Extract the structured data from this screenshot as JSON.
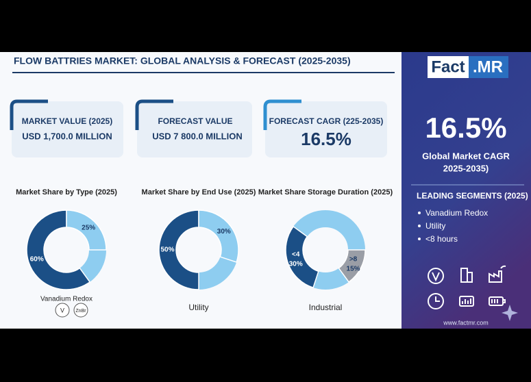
{
  "header": {
    "title": "FLOW BATTRIES MARKET: GLOBAL ANALYSIS & FORECAST (2025-2035)"
  },
  "cards": [
    {
      "label": "MARKET VALUE (2025)",
      "value": "USD 1,700.0 MILLION"
    },
    {
      "label": "FORECAST VALUE",
      "value": "USD 7 800.0 MILLION"
    },
    {
      "label": "FORECAST CAGR (225-2035)",
      "value": "16.5%"
    }
  ],
  "chart_data": [
    {
      "type": "donut",
      "title": "Market Share by Type (2025)",
      "values": [
        60,
        25
      ],
      "value_labels": [
        "60%",
        "25%"
      ],
      "colors": [
        "#1b4f86",
        "#8ecdf0"
      ],
      "caption": "Vanadium Redox",
      "icons": [
        "V",
        "ZnBr"
      ]
    },
    {
      "type": "donut",
      "title": "Market Share by End Use (2025)",
      "values": [
        50,
        30
      ],
      "value_labels": [
        "50%",
        "30%"
      ],
      "colors": [
        "#1b4f86",
        "#8ecdf0"
      ],
      "caption": "Utility"
    },
    {
      "type": "donut",
      "title": "Market Share Storage Duration (2025)",
      "categories": [
        "<4",
        ">8"
      ],
      "values": [
        30,
        15
      ],
      "value_labels": [
        "30%",
        "15%"
      ],
      "colors": [
        "#1b4f86",
        "#9a9ea6"
      ],
      "caption": "Industrial"
    }
  ],
  "sidebar": {
    "logo": [
      "Fact",
      ".MR"
    ],
    "cagr": "16.5%",
    "cagr_label": [
      "Global Market CAGR",
      "2025-2035)"
    ],
    "segments_title": "LEADING SEGMENTS (2025)",
    "segments": [
      "Vanadium Redox",
      "Utility",
      "<8 hours"
    ],
    "website": "www.factmr.com"
  }
}
